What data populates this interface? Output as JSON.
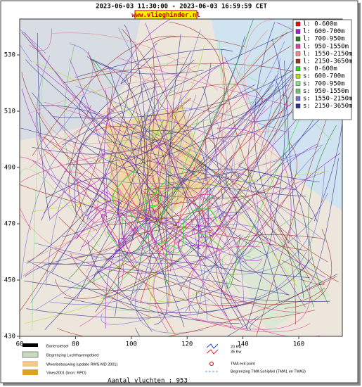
{
  "header": {
    "title": "2023-06-03 11:30:00 - 2023-06-03 16:59:59 CET",
    "site": "www.vlieghinder.nl"
  },
  "axes": {
    "yticks": [
      530,
      510,
      490,
      470,
      450,
      430
    ],
    "xticks": [
      60,
      80,
      100,
      120,
      140,
      160
    ]
  },
  "legend": [
    {
      "label": "l: 0-600m",
      "color": "#e01010"
    },
    {
      "label": "l: 600-700m",
      "color": "#a020d0"
    },
    {
      "label": "l: 700-950m",
      "color": "#208020"
    },
    {
      "label": "l: 950-1550m",
      "color": "#e040a0"
    },
    {
      "label": "l: 1550-2150m",
      "color": "#e89090"
    },
    {
      "label": "l: 2150-3650m",
      "color": "#a03020"
    },
    {
      "label": "s: 0-600m",
      "color": "#20e020"
    },
    {
      "label": "s: 600-700m",
      "color": "#b0e020"
    },
    {
      "label": "s: 700-950m",
      "color": "#90e090"
    },
    {
      "label": "s: 950-1550m",
      "color": "#70c070"
    },
    {
      "label": "s: 1550-2150m",
      "color": "#7070d0"
    },
    {
      "label": "s: 2150-3650m",
      "color": "#303090"
    }
  ],
  "footer_legend": {
    "runways": "Banenstelsel",
    "boundary": "Begrenzing Luchthavengebied",
    "housing": "Woonbebouwing (update RWS-MD 2001)",
    "vinex": "Vinex2001 (bron: RPD)",
    "kw20": "20 Kw",
    "kw35": "35 Kw",
    "tma_exit": "TMA exit point",
    "tma_boundary": "Begrenzing TMA Schiphol  (TMA1 en TMA3)"
  },
  "flights": "Aantal vluchten : 953"
}
